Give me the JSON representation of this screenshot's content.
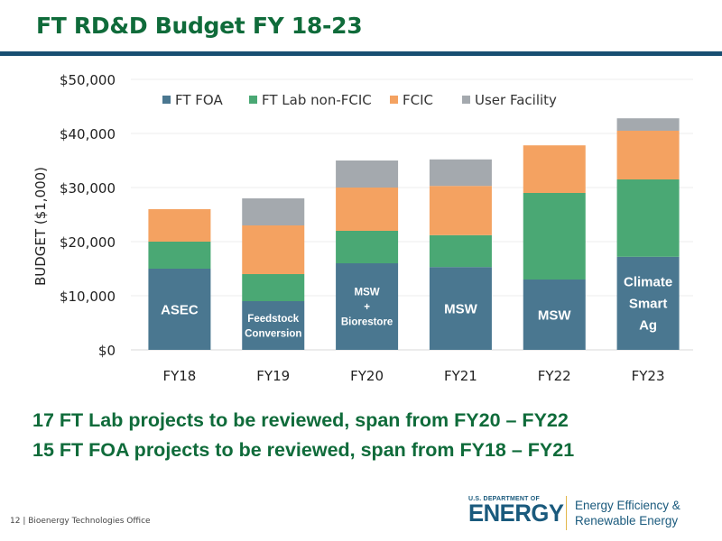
{
  "slide": {
    "title": "FT RD&D Budget FY 18-23",
    "bullets": [
      "17 FT Lab projects to be reviewed, span from FY20 – FY22",
      "15 FT FOA projects to be reviewed, span from FY18 – FY21"
    ],
    "footer": "12 | Bioenergy Technologies Office",
    "logo": {
      "dept_small": "U.S. DEPARTMENT OF",
      "dept_big": "ENERGY",
      "office_line1": "Energy Efficiency &",
      "office_line2": "Renewable Energy"
    }
  },
  "chart_data": {
    "type": "bar",
    "stacked": true,
    "title": "",
    "xlabel": "",
    "ylabel": "BUDGET ($1,000)",
    "ylim": [
      0,
      50000
    ],
    "yticks": [
      0,
      10000,
      20000,
      30000,
      40000,
      50000
    ],
    "ytick_labels": [
      "$0",
      "$10,000",
      "$20,000",
      "$30,000",
      "$40,000",
      "$50,000"
    ],
    "grid": true,
    "legend_position": "top",
    "categories": [
      "FY18",
      "FY19",
      "FY20",
      "FY21",
      "FY22",
      "FY23"
    ],
    "series": [
      {
        "name": "FT FOA",
        "color": "#4a7790",
        "values": [
          15000,
          9000,
          16000,
          15300,
          13000,
          17200
        ]
      },
      {
        "name": "FT Lab non-FCIC",
        "color": "#4aa874",
        "values": [
          5000,
          5000,
          6000,
          5900,
          16000,
          14300
        ]
      },
      {
        "name": "FCIC",
        "color": "#f4a261",
        "values": [
          6000,
          9000,
          8000,
          9100,
          8800,
          9000
        ]
      },
      {
        "name": "User Facility",
        "color": "#a4a9ae",
        "values": [
          0,
          5000,
          5000,
          4900,
          0,
          2300
        ]
      }
    ],
    "annotations": [
      {
        "category": "FY18",
        "lines": [
          "ASEC"
        ],
        "size": "large"
      },
      {
        "category": "FY19",
        "lines": [
          "Feedstock",
          "Conversion"
        ],
        "size": "small"
      },
      {
        "category": "FY20",
        "lines": [
          "MSW",
          "+",
          "Biorestore"
        ],
        "size": "small"
      },
      {
        "category": "FY21",
        "lines": [
          "MSW"
        ],
        "size": "large"
      },
      {
        "category": "FY22",
        "lines": [
          "MSW"
        ],
        "size": "large"
      },
      {
        "category": "FY23",
        "lines": [
          "Climate",
          "Smart",
          "Ag"
        ],
        "size": "large"
      }
    ]
  }
}
